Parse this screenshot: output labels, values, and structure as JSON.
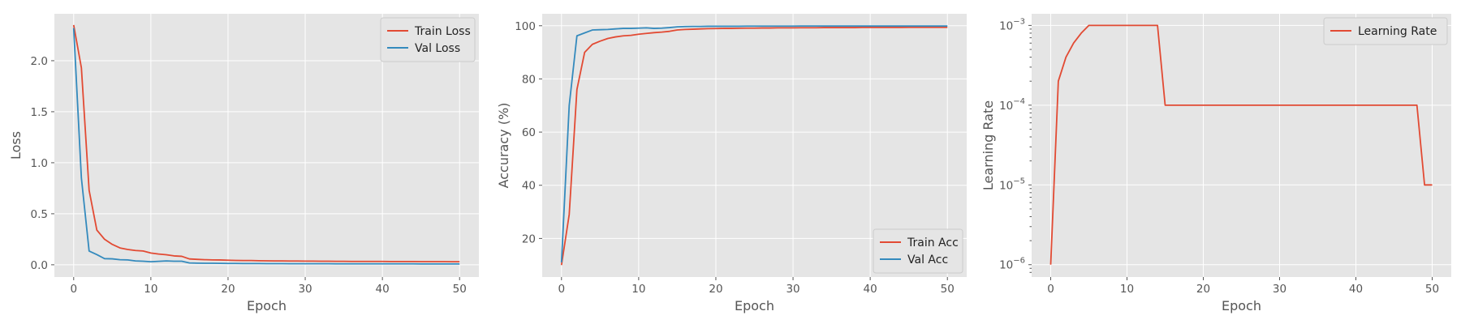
{
  "chart_data": [
    {
      "type": "line",
      "xlabel": "Epoch",
      "ylabel": "Loss",
      "xlim": [
        -2.5,
        52.5
      ],
      "ylim": [
        -0.12,
        2.46
      ],
      "xticks": [
        0,
        10,
        20,
        30,
        40,
        50
      ],
      "yticks": [
        0.0,
        0.5,
        1.0,
        1.5,
        2.0
      ],
      "ytick_labels": [
        "0.0",
        "0.5",
        "1.0",
        "1.5",
        "2.0"
      ],
      "grid": true,
      "legend_position": "top-right",
      "x": [
        0,
        1,
        2,
        3,
        4,
        5,
        6,
        7,
        8,
        9,
        10,
        11,
        12,
        13,
        14,
        15,
        16,
        17,
        18,
        19,
        20,
        21,
        22,
        23,
        24,
        25,
        26,
        27,
        28,
        29,
        30,
        31,
        32,
        33,
        34,
        35,
        36,
        37,
        38,
        39,
        40,
        41,
        42,
        43,
        44,
        45,
        46,
        47,
        48,
        49,
        50
      ],
      "series": [
        {
          "name": "Train Loss",
          "color": "#e24a33",
          "values": [
            2.35,
            1.93,
            0.73,
            0.34,
            0.25,
            0.2,
            0.165,
            0.15,
            0.14,
            0.135,
            0.115,
            0.105,
            0.098,
            0.087,
            0.083,
            0.057,
            0.053,
            0.05,
            0.048,
            0.047,
            0.045,
            0.043,
            0.042,
            0.042,
            0.04,
            0.039,
            0.038,
            0.038,
            0.037,
            0.037,
            0.036,
            0.036,
            0.035,
            0.035,
            0.034,
            0.034,
            0.033,
            0.033,
            0.033,
            0.033,
            0.033,
            0.032,
            0.032,
            0.032,
            0.032,
            0.031,
            0.031,
            0.031,
            0.031,
            0.03,
            0.03
          ]
        },
        {
          "name": "Val Loss",
          "color": "#348abd",
          "values": [
            2.32,
            0.85,
            0.135,
            0.1,
            0.06,
            0.058,
            0.05,
            0.048,
            0.038,
            0.035,
            0.03,
            0.034,
            0.038,
            0.035,
            0.035,
            0.018,
            0.016,
            0.015,
            0.015,
            0.014,
            0.013,
            0.013,
            0.012,
            0.012,
            0.012,
            0.011,
            0.011,
            0.011,
            0.01,
            0.01,
            0.01,
            0.01,
            0.01,
            0.01,
            0.009,
            0.009,
            0.009,
            0.009,
            0.009,
            0.009,
            0.009,
            0.009,
            0.009,
            0.009,
            0.009,
            0.008,
            0.008,
            0.008,
            0.008,
            0.008,
            0.008
          ]
        }
      ]
    },
    {
      "type": "line",
      "xlabel": "Epoch",
      "ylabel": "Accuracy (%)",
      "xlim": [
        -2.5,
        52.5
      ],
      "ylim": [
        5.5,
        104.5
      ],
      "xticks": [
        0,
        10,
        20,
        30,
        40,
        50
      ],
      "yticks": [
        20,
        40,
        60,
        80,
        100
      ],
      "ytick_labels": [
        "20",
        "40",
        "60",
        "80",
        "100"
      ],
      "grid": true,
      "legend_position": "bottom-right",
      "x": [
        0,
        1,
        2,
        3,
        4,
        5,
        6,
        7,
        8,
        9,
        10,
        11,
        12,
        13,
        14,
        15,
        16,
        17,
        18,
        19,
        20,
        21,
        22,
        23,
        24,
        25,
        26,
        27,
        28,
        29,
        30,
        31,
        32,
        33,
        34,
        35,
        36,
        37,
        38,
        39,
        40,
        41,
        42,
        43,
        44,
        45,
        46,
        47,
        48,
        49,
        50
      ],
      "series": [
        {
          "name": "Train Acc",
          "color": "#e24a33",
          "values": [
            10,
            29,
            76,
            90,
            93,
            94.2,
            95.2,
            95.8,
            96.2,
            96.4,
            96.8,
            97.1,
            97.4,
            97.6,
            97.9,
            98.4,
            98.6,
            98.7,
            98.8,
            98.9,
            98.95,
            99.0,
            99.0,
            99.05,
            99.1,
            99.1,
            99.15,
            99.15,
            99.2,
            99.2,
            99.2,
            99.25,
            99.25,
            99.25,
            99.3,
            99.3,
            99.3,
            99.3,
            99.3,
            99.35,
            99.35,
            99.35,
            99.35,
            99.35,
            99.35,
            99.4,
            99.4,
            99.4,
            99.4,
            99.4,
            99.4
          ]
        },
        {
          "name": "Val Acc",
          "color": "#348abd",
          "values": [
            11,
            70,
            96.2,
            97.3,
            98.4,
            98.5,
            98.6,
            98.8,
            99.0,
            99.0,
            99.1,
            99.2,
            99.0,
            99.1,
            99.3,
            99.6,
            99.7,
            99.75,
            99.75,
            99.8,
            99.8,
            99.8,
            99.8,
            99.8,
            99.85,
            99.85,
            99.85,
            99.85,
            99.85,
            99.85,
            99.85,
            99.9,
            99.9,
            99.9,
            99.9,
            99.9,
            99.9,
            99.9,
            99.9,
            99.9,
            99.9,
            99.9,
            99.9,
            99.9,
            99.9,
            99.9,
            99.9,
            99.9,
            99.9,
            99.9,
            99.9
          ]
        }
      ]
    },
    {
      "type": "line",
      "yscale": "log",
      "xlabel": "Epoch",
      "ylabel": "Learning Rate",
      "xlim": [
        -2.5,
        52.5
      ],
      "ylim": [
        7e-07,
        0.0014
      ],
      "xticks": [
        0,
        10,
        20,
        30,
        40,
        50
      ],
      "yticks": [
        1e-06,
        1e-05,
        0.0001,
        0.001
      ],
      "ytick_labels": [
        [
          "10",
          "−6"
        ],
        [
          "10",
          "−5"
        ],
        [
          "10",
          "−4"
        ],
        [
          "10",
          "−3"
        ]
      ],
      "grid": true,
      "legend_position": "top-right",
      "x": [
        0,
        1,
        2,
        3,
        4,
        5,
        6,
        7,
        8,
        9,
        10,
        11,
        12,
        13,
        14,
        15,
        16,
        17,
        18,
        19,
        20,
        21,
        22,
        23,
        24,
        25,
        26,
        27,
        28,
        29,
        30,
        31,
        32,
        33,
        34,
        35,
        36,
        37,
        38,
        39,
        40,
        41,
        42,
        43,
        44,
        45,
        46,
        47,
        48,
        49,
        50
      ],
      "series": [
        {
          "name": "Learning Rate",
          "color": "#e24a33",
          "values": [
            1e-06,
            0.0002,
            0.0004,
            0.0006,
            0.0008,
            0.001,
            0.001,
            0.001,
            0.001,
            0.001,
            0.001,
            0.001,
            0.001,
            0.001,
            0.001,
            0.0001,
            0.0001,
            0.0001,
            0.0001,
            0.0001,
            0.0001,
            0.0001,
            0.0001,
            0.0001,
            0.0001,
            0.0001,
            0.0001,
            0.0001,
            0.0001,
            0.0001,
            0.0001,
            0.0001,
            0.0001,
            0.0001,
            0.0001,
            0.0001,
            0.0001,
            0.0001,
            0.0001,
            0.0001,
            0.0001,
            0.0001,
            0.0001,
            0.0001,
            0.0001,
            0.0001,
            0.0001,
            0.0001,
            0.0001,
            1e-05,
            1e-05
          ]
        }
      ]
    }
  ]
}
